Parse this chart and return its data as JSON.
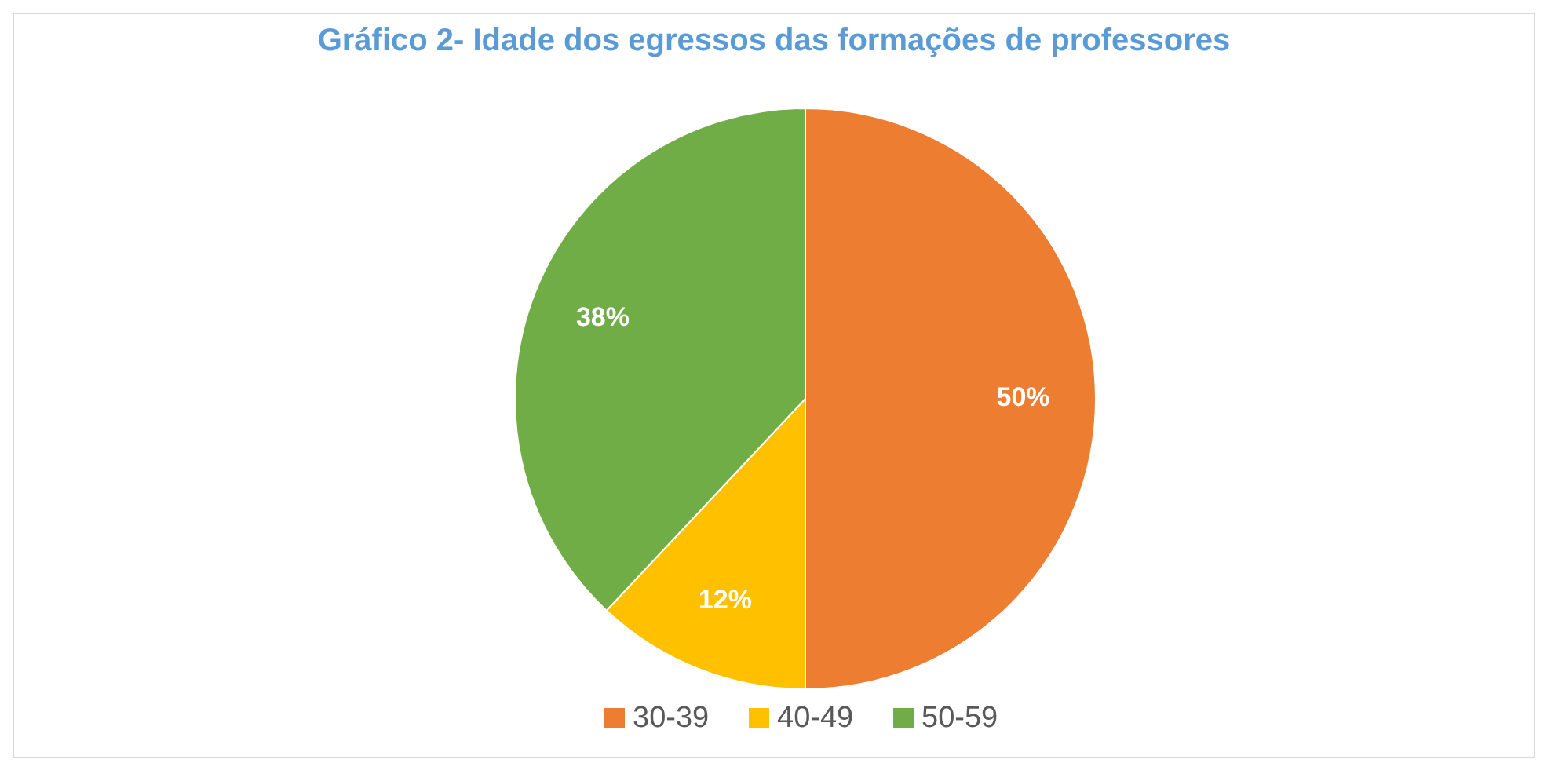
{
  "chart_data": {
    "type": "pie",
    "title": "Gráfico 2- Idade dos egressos das formações de professores",
    "categories": [
      "30-39",
      "40-49",
      "50-59"
    ],
    "values": [
      50,
      12,
      38
    ],
    "colors": [
      "#ed7d31",
      "#ffc000",
      "#70ad47"
    ],
    "value_labels": [
      "50%",
      "12%",
      "38%"
    ],
    "legend": "bottom"
  }
}
